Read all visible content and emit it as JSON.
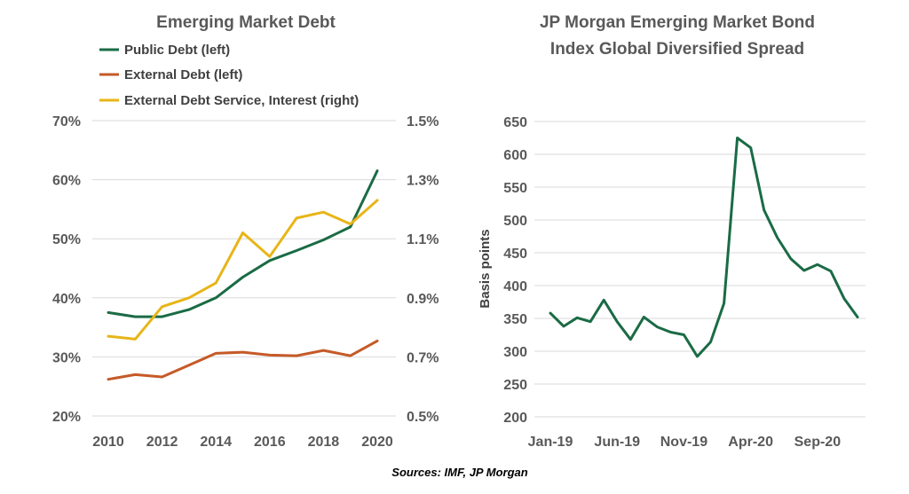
{
  "source_note": "Sources: IMF, JP Morgan",
  "chart_data": [
    {
      "type": "line",
      "title": "Emerging Market Debt",
      "x": [
        2010,
        2011,
        2012,
        2013,
        2014,
        2015,
        2016,
        2017,
        2018,
        2019,
        2020
      ],
      "x_ticks": [
        "2010",
        "2012",
        "2014",
        "2016",
        "2018",
        "2020"
      ],
      "y_left": {
        "range": [
          20,
          70
        ],
        "ticks": [
          "20%",
          "30%",
          "40%",
          "50%",
          "60%",
          "70%"
        ],
        "grid": true
      },
      "y_right": {
        "range": [
          0.5,
          1.5
        ],
        "ticks": [
          "0.5%",
          "0.7%",
          "0.9%",
          "1.1%",
          "1.3%",
          "1.5%"
        ]
      },
      "legend_position": "top",
      "series": [
        {
          "name": "Public Debt (left)",
          "axis": "left",
          "color": "#1a6b45",
          "values": [
            37.5,
            36.8,
            36.8,
            38.0,
            40.0,
            43.5,
            46.3,
            48.0,
            49.8,
            52.0,
            61.5
          ]
        },
        {
          "name": "External Debt (left)",
          "axis": "left",
          "color": "#c55a28",
          "values": [
            26.2,
            27.0,
            26.6,
            28.6,
            30.6,
            30.8,
            30.3,
            30.2,
            31.1,
            30.2,
            32.7
          ]
        },
        {
          "name": "External Debt Service, Interest (right)",
          "axis": "right",
          "color": "#e8b518",
          "values": [
            0.77,
            0.76,
            0.87,
            0.9,
            0.95,
            1.12,
            1.04,
            1.17,
            1.19,
            1.15,
            1.23
          ]
        }
      ]
    },
    {
      "type": "line",
      "title": "JP Morgan Emerging Market Bond Index Global Diversified Spread",
      "title_lines": [
        "JP Morgan Emerging Market Bond",
        "Index Global Diversified Spread"
      ],
      "ylabel": "Basis points",
      "x_ticks": [
        "Jan-19",
        "Jun-19",
        "Nov-19",
        "Apr-20",
        "Sep-20"
      ],
      "y": {
        "range": [
          200,
          650
        ],
        "ticks": [
          "200",
          "250",
          "300",
          "350",
          "400",
          "450",
          "500",
          "550",
          "600",
          "650"
        ],
        "grid": true
      },
      "series": [
        {
          "color": "#1a6b45",
          "values": [
            358,
            338,
            351,
            345,
            378,
            345,
            318,
            352,
            337,
            329,
            325,
            292,
            314,
            373,
            625,
            610,
            515,
            473,
            441,
            423,
            432,
            422,
            380,
            352
          ]
        }
      ]
    }
  ]
}
